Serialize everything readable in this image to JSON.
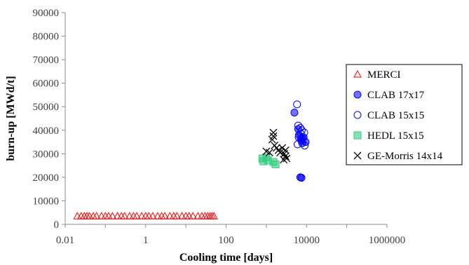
{
  "chart_data": {
    "type": "scatter",
    "xlabel": "Cooling time [days]",
    "ylabel": "burn-up [MWd/t]",
    "xscale": "log",
    "xlim": [
      0.01,
      1000000
    ],
    "ylim": [
      0,
      90000
    ],
    "x_ticks": [
      "0.01",
      "1",
      "100",
      "10000",
      "1000000"
    ],
    "y_ticks": [
      "0",
      "10000",
      "20000",
      "30000",
      "40000",
      "50000",
      "60000",
      "70000",
      "80000",
      "90000"
    ],
    "grid": false,
    "legend_position": "right",
    "series": [
      {
        "name": "MERCI",
        "marker": "triangle-open",
        "color": "#ff0000",
        "points": [
          [
            0.02,
            3500
          ],
          [
            0.025,
            3500
          ],
          [
            0.03,
            3500
          ],
          [
            0.035,
            3500
          ],
          [
            0.04,
            3500
          ],
          [
            0.05,
            3500
          ],
          [
            0.06,
            3500
          ],
          [
            0.08,
            3500
          ],
          [
            0.1,
            3500
          ],
          [
            0.12,
            3500
          ],
          [
            0.15,
            3500
          ],
          [
            0.2,
            3500
          ],
          [
            0.25,
            3500
          ],
          [
            0.3,
            3500
          ],
          [
            0.4,
            3500
          ],
          [
            0.5,
            3500
          ],
          [
            0.6,
            3500
          ],
          [
            0.8,
            3500
          ],
          [
            1,
            3500
          ],
          [
            1.2,
            3500
          ],
          [
            1.5,
            3500
          ],
          [
            2,
            3500
          ],
          [
            2.5,
            3500
          ],
          [
            3,
            3500
          ],
          [
            4,
            3500
          ],
          [
            5,
            3500
          ],
          [
            6,
            3500
          ],
          [
            8,
            3500
          ],
          [
            10,
            3500
          ],
          [
            12,
            3500
          ],
          [
            15,
            3500
          ],
          [
            20,
            3500
          ],
          [
            25,
            3500
          ],
          [
            30,
            3500
          ],
          [
            35,
            3500
          ],
          [
            40,
            3500
          ],
          [
            45,
            3500
          ],
          [
            50,
            3500
          ]
        ]
      },
      {
        "name": "CLAB 17x17",
        "marker": "circle-filled",
        "color": "#0000ff",
        "points": [
          [
            5000,
            47500
          ],
          [
            6200,
            40500
          ],
          [
            6500,
            38000
          ],
          [
            7200,
            36500
          ],
          [
            7500,
            35500
          ],
          [
            7800,
            34500
          ],
          [
            8500,
            37000
          ],
          [
            8000,
            36500
          ],
          [
            9500,
            35000
          ],
          [
            7000,
            20000
          ],
          [
            7500,
            19800
          ]
        ]
      },
      {
        "name": "CLAB 15x15",
        "marker": "circle-open",
        "color": "#0000ff",
        "points": [
          [
            5800,
            51000
          ],
          [
            6200,
            42000
          ],
          [
            7000,
            41000
          ],
          [
            7600,
            40000
          ],
          [
            8800,
            39000
          ],
          [
            6400,
            37000
          ],
          [
            7200,
            38500
          ],
          [
            6000,
            34000
          ],
          [
            9000,
            33500
          ]
        ]
      },
      {
        "name": "HEDL 15x15",
        "marker": "square-filled",
        "color": "#33cc80",
        "points": [
          [
            800,
            28000
          ],
          [
            850,
            26800
          ],
          [
            1000,
            28500
          ],
          [
            1100,
            27200
          ],
          [
            1500,
            26500
          ],
          [
            1700,
            25500
          ]
        ]
      },
      {
        "name": "GE-Morris 14x14",
        "marker": "x",
        "color": "#000000",
        "points": [
          [
            1500,
            39000
          ],
          [
            1500,
            37500
          ],
          [
            1400,
            36000
          ],
          [
            1600,
            33500
          ],
          [
            1800,
            32500
          ],
          [
            2000,
            31500
          ],
          [
            2200,
            30500
          ],
          [
            2500,
            32500
          ],
          [
            2800,
            30000
          ],
          [
            3000,
            29000
          ],
          [
            1200,
            30500
          ],
          [
            1000,
            31000
          ],
          [
            3200,
            28000
          ],
          [
            3000,
            31500
          ],
          [
            2700,
            27500
          ]
        ]
      }
    ]
  }
}
